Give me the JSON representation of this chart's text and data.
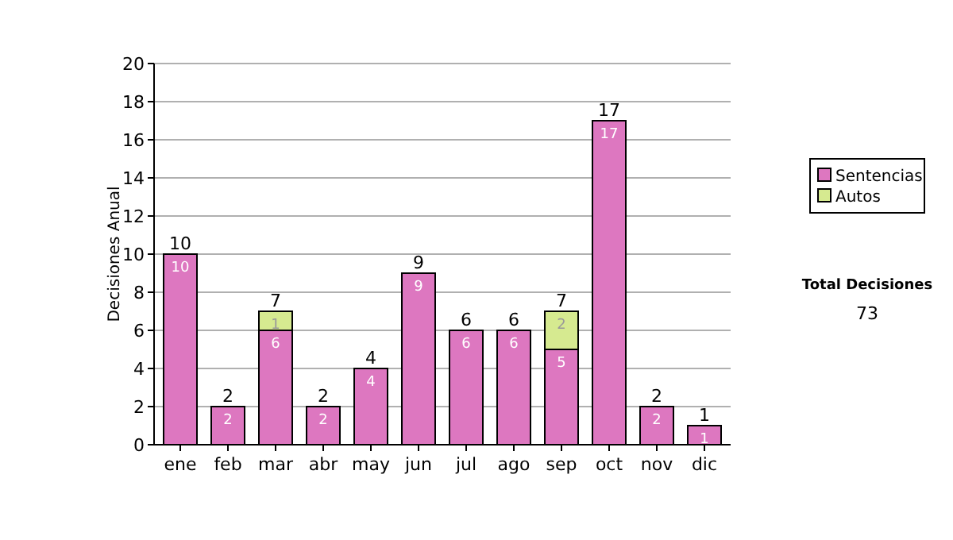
{
  "chart_data": {
    "type": "bar",
    "stacked": true,
    "ylabel": "Decisiones Anual",
    "categories": [
      "ene",
      "feb",
      "mar",
      "abr",
      "may",
      "jun",
      "jul",
      "ago",
      "sep",
      "oct",
      "nov",
      "dic"
    ],
    "series": [
      {
        "name": "Sentencias",
        "color": "#dd77c0",
        "values": [
          10,
          2,
          6,
          2,
          4,
          9,
          6,
          6,
          5,
          17,
          2,
          1
        ],
        "value_labels": [
          "10",
          "2",
          "6",
          "2",
          "4",
          "9",
          "6",
          "6",
          "5",
          "17",
          "2",
          "1"
        ]
      },
      {
        "name": "Autos",
        "color": "#d6ea90",
        "values": [
          0,
          0,
          1,
          0,
          0,
          0,
          0,
          0,
          2,
          0,
          0,
          0
        ],
        "value_labels": [
          null,
          null,
          "1",
          null,
          null,
          null,
          null,
          null,
          "2",
          null,
          null,
          null
        ]
      }
    ],
    "totals": [
      "10",
      "2",
      "7",
      "2",
      "4",
      "9",
      "6",
      "6",
      "7",
      "17",
      "2",
      "1"
    ],
    "ylim": [
      0,
      20
    ],
    "yticks": [
      0,
      2,
      4,
      6,
      8,
      10,
      12,
      14,
      16,
      18,
      20
    ],
    "grid": "y",
    "legend": "right",
    "annotations": [
      "Total Decisiones",
      "73"
    ]
  }
}
